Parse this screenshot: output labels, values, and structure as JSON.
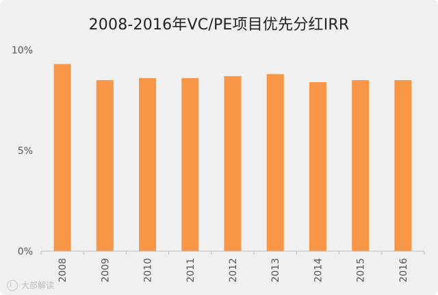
{
  "chart_data": {
    "type": "bar",
    "title": "2008-2016年VC/PE项目优先分红IRR",
    "xlabel": "",
    "ylabel": "",
    "categories": [
      "2008",
      "2009",
      "2010",
      "2011",
      "2012",
      "2013",
      "2014",
      "2015",
      "2016"
    ],
    "values": [
      9.3,
      8.5,
      8.6,
      8.6,
      8.7,
      8.8,
      8.4,
      8.5,
      8.5
    ],
    "yticks": [
      0,
      5,
      10
    ],
    "ytick_labels": [
      "0%",
      "5%",
      "10%"
    ],
    "ylim": [
      0,
      10
    ],
    "grid": false,
    "legend": "none",
    "colors": {
      "bar": "#f79646",
      "axis": "#bfbfbf",
      "background": "#f0f0f0"
    }
  },
  "watermark": {
    "text": "大部解读",
    "icon": "weibo-icon"
  }
}
